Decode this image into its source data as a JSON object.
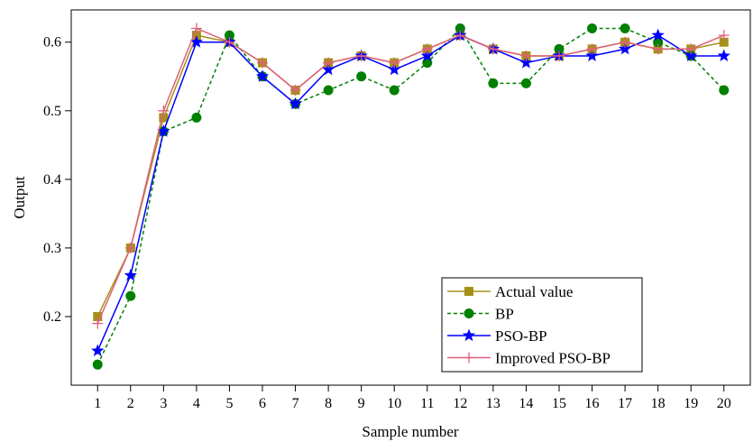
{
  "chart_data": {
    "type": "line",
    "xlabel": "Sample number",
    "ylabel": "Output",
    "x": [
      1,
      2,
      3,
      4,
      5,
      6,
      7,
      8,
      9,
      10,
      11,
      12,
      13,
      14,
      15,
      16,
      17,
      18,
      19,
      20
    ],
    "xlim": [
      0.2,
      20.8
    ],
    "ylim": [
      0.1,
      0.647
    ],
    "yticks": [
      0.2,
      0.3,
      0.4,
      0.5,
      0.6
    ],
    "ytick_labels": [
      "0.2",
      "0.3",
      "0.4",
      "0.5",
      "0.6"
    ],
    "xtick_labels": [
      "1",
      "2",
      "3",
      "4",
      "5",
      "6",
      "7",
      "8",
      "9",
      "10",
      "11",
      "12",
      "13",
      "14",
      "15",
      "16",
      "17",
      "18",
      "19",
      "20"
    ],
    "grid": false,
    "legend_position": "bottom-right",
    "series": [
      {
        "name": "Actual value",
        "color": "#A6901A",
        "marker": "square",
        "line": "solid",
        "values": [
          0.2,
          0.3,
          0.49,
          0.61,
          0.6,
          0.57,
          0.53,
          0.57,
          0.58,
          0.57,
          0.59,
          0.61,
          0.59,
          0.58,
          0.58,
          0.59,
          0.6,
          0.59,
          0.59,
          0.6
        ]
      },
      {
        "name": "BP",
        "color": "#008000",
        "marker": "circle",
        "line": "dashed",
        "values": [
          0.13,
          0.23,
          0.47,
          0.49,
          0.61,
          0.55,
          0.51,
          0.53,
          0.55,
          0.53,
          0.57,
          0.62,
          0.54,
          0.54,
          0.59,
          0.62,
          0.62,
          0.6,
          0.58,
          0.53
        ]
      },
      {
        "name": "PSO-BP",
        "color": "#0000FF",
        "marker": "star",
        "line": "solid",
        "values": [
          0.15,
          0.26,
          0.47,
          0.6,
          0.6,
          0.55,
          0.51,
          0.56,
          0.58,
          0.56,
          0.58,
          0.61,
          0.59,
          0.57,
          0.58,
          0.58,
          0.59,
          0.61,
          0.58,
          0.58
        ]
      },
      {
        "name": "Improved PSO-BP",
        "color": "#E0607A",
        "marker": "plus",
        "line": "solid",
        "values": [
          0.19,
          0.3,
          0.5,
          0.62,
          0.6,
          0.57,
          0.53,
          0.57,
          0.58,
          0.57,
          0.59,
          0.61,
          0.59,
          0.58,
          0.58,
          0.59,
          0.6,
          0.59,
          0.59,
          0.61
        ]
      }
    ]
  }
}
